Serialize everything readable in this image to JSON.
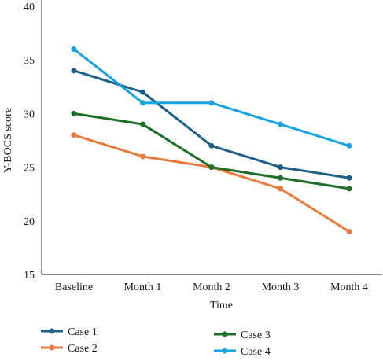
{
  "chart_data": {
    "type": "line",
    "categories": [
      "Baseline",
      "Month 1",
      "Month 2",
      "Month 3",
      "Month 4"
    ],
    "series": [
      {
        "name": "Case 1",
        "color": "#1f5f87",
        "values": [
          34,
          32,
          27,
          25,
          24
        ]
      },
      {
        "name": "Case 2",
        "color": "#e87a3c",
        "values": [
          28,
          26,
          25,
          23,
          19
        ]
      },
      {
        "name": "Case 3",
        "color": "#1e6e28",
        "values": [
          30,
          29,
          25,
          24,
          23
        ]
      },
      {
        "name": "Case 4",
        "color": "#1aa3dc",
        "values": [
          36,
          31,
          31,
          29,
          27
        ]
      }
    ],
    "xlabel": "Time",
    "ylabel": "Y-BOCS score",
    "ylim": [
      15,
      40
    ],
    "yticks": [
      15,
      20,
      25,
      30,
      35,
      40
    ],
    "grid": false,
    "legend_position": "bottom"
  }
}
